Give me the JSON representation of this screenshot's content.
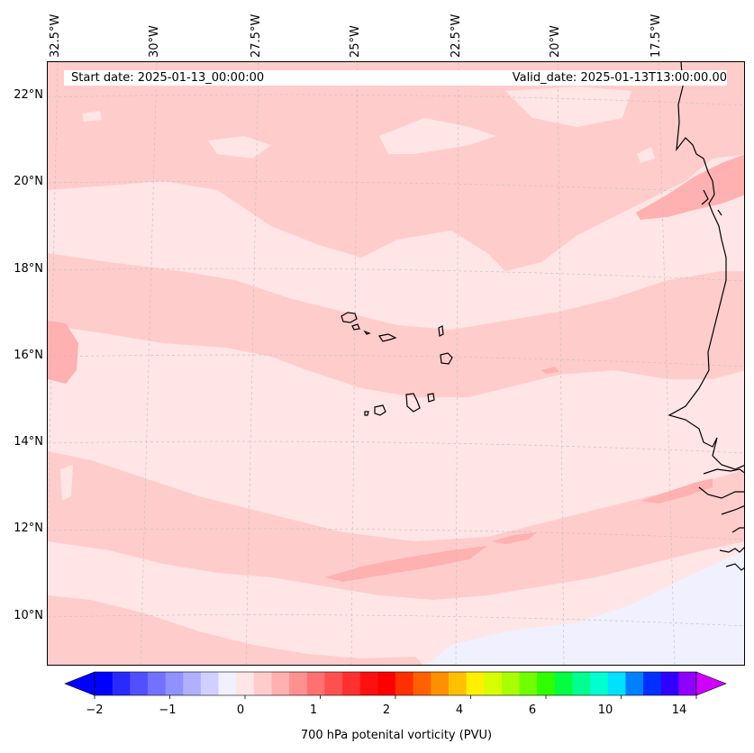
{
  "header": {
    "start_date": "Start date: 2025-01-13_00:00:00",
    "valid_date": "Valid_date: 2025-01-13T13:00:00.00"
  },
  "axes": {
    "lon_labels": [
      "32.5°W",
      "30°W",
      "27.5°W",
      "25°W",
      "22.5°W",
      "20°W",
      "17.5°W"
    ],
    "lat_labels": [
      "22°N",
      "20°N",
      "18°N",
      "16°N",
      "14°N",
      "12°N",
      "10°N"
    ]
  },
  "colorbar": {
    "label": "700 hPa potenital vorticity (PVU)",
    "tick_labels": [
      "−2",
      "−1",
      "0",
      "1",
      "2",
      "4",
      "6",
      "10",
      "14"
    ],
    "levels": [
      -2,
      -1.5,
      -1,
      -0.5,
      0,
      0.5,
      1,
      1.5,
      2,
      3,
      4,
      5,
      6,
      8,
      10,
      12,
      14,
      16
    ],
    "colors": [
      "#0000ff",
      "#2a2aff",
      "#5050ff",
      "#7272ff",
      "#9090ff",
      "#b0b0ff",
      "#d0d0ff",
      "#f0f0ff",
      "#ffe5e5",
      "#ffcccc",
      "#ffb0b0",
      "#ff9090",
      "#ff7070",
      "#ff5050",
      "#ff3030",
      "#ff1010",
      "#ff0000",
      "#ff3000",
      "#ff6000",
      "#ff9000",
      "#ffc000",
      "#fff000",
      "#d8ff00",
      "#a8ff00",
      "#70ff00",
      "#30ff00",
      "#00ff40",
      "#00ff90",
      "#00ffd0",
      "#00e0ff",
      "#0080ff",
      "#0030ff",
      "#3000ff",
      "#9000ff"
    ],
    "extend_low_color": "#0000ff",
    "extend_high_color": "#d000ff"
  },
  "map": {
    "region": "Cape Verde / NW Africa",
    "background_color": "#ffe5e5",
    "band_color": "#ffcccc",
    "strong_color": "#ffb0b0",
    "low_color": "#f0f0ff"
  }
}
